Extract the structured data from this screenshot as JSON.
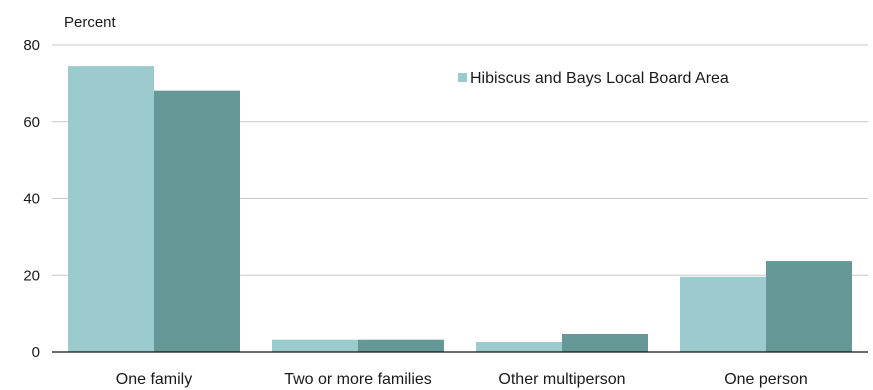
{
  "chart_data": {
    "type": "bar",
    "ylabel": "Percent",
    "ylim": [
      0,
      80
    ],
    "yticks": [
      0,
      20,
      40,
      60,
      80
    ],
    "grid": true,
    "legend_position": "top-right",
    "categories": [
      "One family",
      "Two or more families",
      "Other multiperson",
      "One person"
    ],
    "series": [
      {
        "name": "Hibiscus and Bays Local Board Area",
        "color": "#9bcbcd",
        "values": [
          74.5,
          3.2,
          2.6,
          19.6
        ]
      },
      {
        "color": "#659896",
        "values": [
          68.1,
          3.2,
          4.7,
          23.7
        ]
      }
    ]
  }
}
